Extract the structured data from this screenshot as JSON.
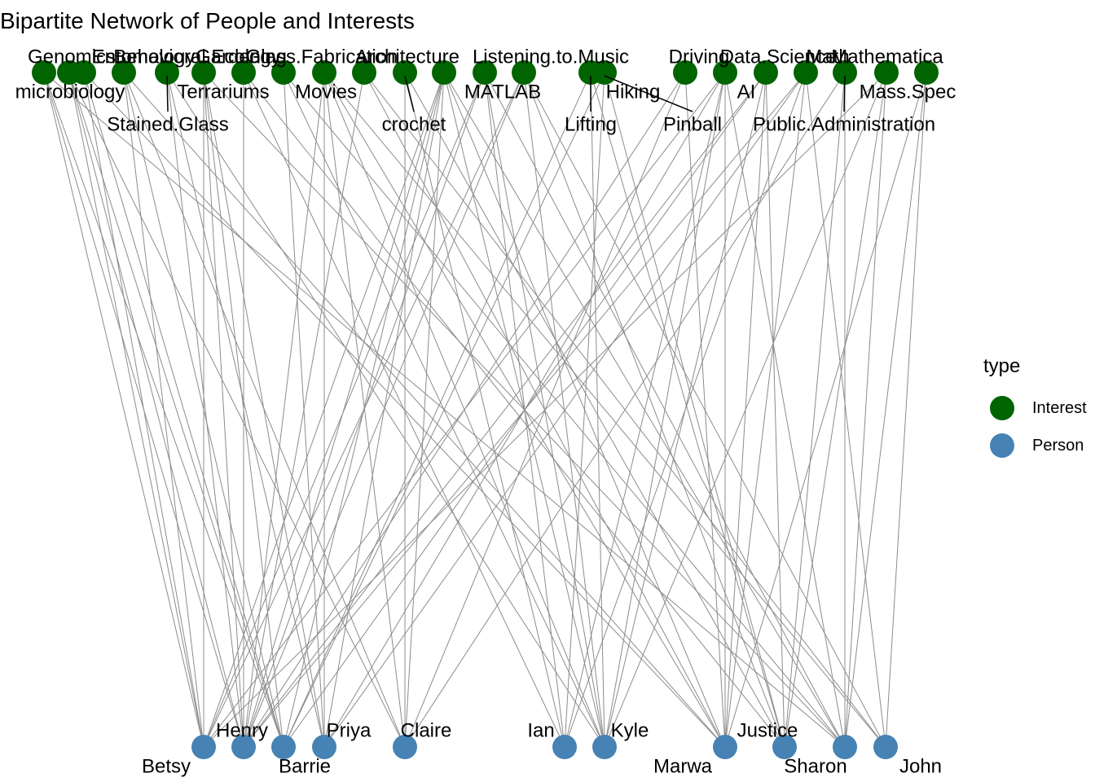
{
  "title": "Bipartite Network of People and Interests",
  "colors": {
    "interest": "#006400",
    "person": "#4682B4",
    "edge": "#8c8c8c"
  },
  "legend": {
    "title": "type",
    "items": [
      {
        "key": "interest",
        "label": "Interest"
      },
      {
        "key": "person",
        "label": "Person"
      }
    ]
  },
  "interests": [
    "Genomics",
    "microbiology",
    "Entomology",
    "Stained.Glass",
    "Behavioral.Ecology",
    "Terrariums",
    "Gardening",
    "Movies",
    "Glass.Fabrication",
    "crochet",
    "Architecture",
    "MATLAB",
    "Listening.to.Music",
    "Lifting",
    "Hiking",
    "Driving",
    "Pinball",
    "Data.Science",
    "AI",
    "Public.Administration",
    "Math",
    "Mathematica",
    "Mass.Spec"
  ],
  "people": [
    "Betsy",
    "Henry",
    "Barrie",
    "Priya",
    "Claire",
    "Ian",
    "Kyle",
    "Marwa",
    "Justice",
    "Sharon",
    "John"
  ],
  "edges": [
    [
      "Genomics",
      "Betsy"
    ],
    [
      "Genomics",
      "Henry"
    ],
    [
      "Genomics",
      "Barrie"
    ],
    [
      "Genomics",
      "Sharon"
    ],
    [
      "microbiology",
      "Betsy"
    ],
    [
      "microbiology",
      "Henry"
    ],
    [
      "microbiology",
      "Barrie"
    ],
    [
      "microbiology",
      "Claire"
    ],
    [
      "Entomology",
      "Betsy"
    ],
    [
      "Entomology",
      "Barrie"
    ],
    [
      "Entomology",
      "Marwa"
    ],
    [
      "Stained.Glass",
      "Henry"
    ],
    [
      "Stained.Glass",
      "Priya"
    ],
    [
      "Stained.Glass",
      "Kyle"
    ],
    [
      "Behavioral.Ecology",
      "Betsy"
    ],
    [
      "Behavioral.Ecology",
      "Barrie"
    ],
    [
      "Behavioral.Ecology",
      "Claire"
    ],
    [
      "Behavioral.Ecology",
      "Marwa"
    ],
    [
      "Terrariums",
      "Henry"
    ],
    [
      "Terrariums",
      "Ian"
    ],
    [
      "Terrariums",
      "Justice"
    ],
    [
      "Gardening",
      "Betsy"
    ],
    [
      "Gardening",
      "Henry"
    ],
    [
      "Gardening",
      "Barrie"
    ],
    [
      "Gardening",
      "Priya"
    ],
    [
      "Gardening",
      "Sharon"
    ],
    [
      "Movies",
      "Henry"
    ],
    [
      "Movies",
      "Priya"
    ],
    [
      "Movies",
      "Claire"
    ],
    [
      "Movies",
      "Kyle"
    ],
    [
      "Movies",
      "Marwa"
    ],
    [
      "Movies",
      "John"
    ],
    [
      "Glass.Fabrication",
      "Priya"
    ],
    [
      "Glass.Fabrication",
      "Kyle"
    ],
    [
      "Glass.Fabrication",
      "Sharon"
    ],
    [
      "crochet",
      "Claire"
    ],
    [
      "crochet",
      "Ian"
    ],
    [
      "crochet",
      "Justice"
    ],
    [
      "Architecture",
      "Henry"
    ],
    [
      "Architecture",
      "Marwa"
    ],
    [
      "Architecture",
      "John"
    ],
    [
      "MATLAB",
      "Betsy"
    ],
    [
      "MATLAB",
      "Henry"
    ],
    [
      "MATLAB",
      "Ian"
    ],
    [
      "MATLAB",
      "Kyle"
    ],
    [
      "MATLAB",
      "Sharon"
    ],
    [
      "Listening.to.Music",
      "Betsy"
    ],
    [
      "Listening.to.Music",
      "Henry"
    ],
    [
      "Listening.to.Music",
      "Barrie"
    ],
    [
      "Listening.to.Music",
      "Priya"
    ],
    [
      "Listening.to.Music",
      "Claire"
    ],
    [
      "Listening.to.Music",
      "Kyle"
    ],
    [
      "Listening.to.Music",
      "Marwa"
    ],
    [
      "Listening.to.Music",
      "Sharon"
    ],
    [
      "Lifting",
      "Barrie"
    ],
    [
      "Lifting",
      "Kyle"
    ],
    [
      "Lifting",
      "Justice"
    ],
    [
      "Hiking",
      "Betsy"
    ],
    [
      "Hiking",
      "Henry"
    ],
    [
      "Hiking",
      "Kyle"
    ],
    [
      "Hiking",
      "Justice"
    ],
    [
      "Hiking",
      "John"
    ],
    [
      "Driving",
      "Henry"
    ],
    [
      "Driving",
      "Claire"
    ],
    [
      "Driving",
      "Marwa"
    ],
    [
      "Pinball",
      "Barrie"
    ],
    [
      "Pinball",
      "Ian"
    ],
    [
      "Pinball",
      "Justice"
    ],
    [
      "Data.Science",
      "Betsy"
    ],
    [
      "Data.Science",
      "Priya"
    ],
    [
      "Data.Science",
      "Ian"
    ],
    [
      "Data.Science",
      "Kyle"
    ],
    [
      "Data.Science",
      "Marwa"
    ],
    [
      "Data.Science",
      "Sharon"
    ],
    [
      "AI",
      "Henry"
    ],
    [
      "AI",
      "Barrie"
    ],
    [
      "AI",
      "Kyle"
    ],
    [
      "AI",
      "Justice"
    ],
    [
      "AI",
      "Marwa"
    ],
    [
      "Public.Administration",
      "Claire"
    ],
    [
      "Public.Administration",
      "Justice"
    ],
    [
      "Public.Administration",
      "Sharon"
    ],
    [
      "Math",
      "Henry"
    ],
    [
      "Math",
      "Priya"
    ],
    [
      "Math",
      "Ian"
    ],
    [
      "Math",
      "Marwa"
    ],
    [
      "Math",
      "John"
    ],
    [
      "Mathematica",
      "Betsy"
    ],
    [
      "Mathematica",
      "Kyle"
    ],
    [
      "Mathematica",
      "Justice"
    ],
    [
      "Mathematica",
      "Sharon"
    ],
    [
      "Mass.Spec",
      "Marwa"
    ],
    [
      "Mass.Spec",
      "Sharon"
    ],
    [
      "Mass.Spec",
      "John"
    ]
  ]
}
